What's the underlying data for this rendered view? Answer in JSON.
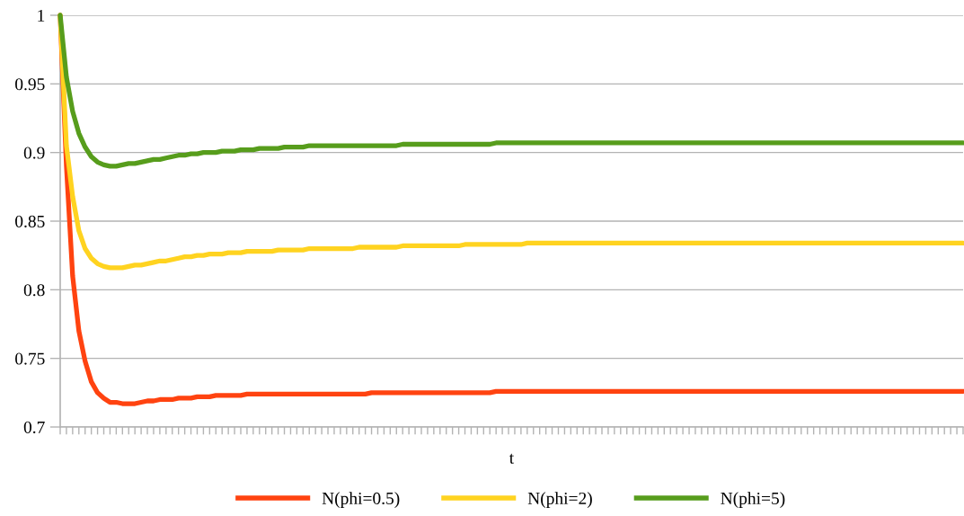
{
  "chart_data": {
    "type": "line",
    "xlabel": "t",
    "categories": [
      null,
      null,
      null,
      null,
      null,
      null,
      null,
      null,
      null,
      null,
      null,
      null,
      null,
      null,
      null,
      null,
      null,
      null,
      null,
      null,
      null,
      null,
      null,
      null,
      null,
      null,
      null,
      null,
      null,
      null,
      null,
      null,
      null,
      null,
      null,
      null,
      null,
      null,
      null,
      null,
      null,
      null,
      null,
      null,
      null,
      null,
      null,
      null,
      null,
      null,
      null,
      null,
      null,
      null,
      null,
      null,
      null,
      null,
      null,
      null,
      null,
      null,
      null,
      null,
      null,
      null,
      null,
      null,
      null,
      null,
      null,
      null,
      null,
      null,
      null,
      null,
      null,
      null,
      null,
      null,
      null,
      null,
      null,
      null,
      null,
      null,
      null,
      null,
      null,
      null,
      null,
      null,
      null,
      null,
      null,
      null,
      null,
      null,
      null,
      null,
      null,
      null,
      null,
      null,
      null,
      null,
      null,
      null,
      null,
      null,
      null,
      null,
      null,
      null,
      null,
      null,
      null,
      null,
      null,
      null,
      null,
      null,
      null,
      null,
      null,
      null,
      null,
      null,
      null,
      null,
      null,
      null,
      null,
      null,
      null,
      null,
      null,
      null,
      null,
      null,
      null,
      null,
      null,
      null,
      null,
      null
    ],
    "series": [
      {
        "name": "N(phi=0.5)",
        "color": "#ff4310",
        "values": [
          1.0,
          0.89,
          0.81,
          0.77,
          0.748,
          0.733,
          0.725,
          0.721,
          0.718,
          0.718,
          0.717,
          0.717,
          0.717,
          0.718,
          0.719,
          0.719,
          0.72,
          0.72,
          0.72,
          0.721,
          0.721,
          0.721,
          0.722,
          0.722,
          0.722,
          0.723,
          0.723,
          0.723,
          0.723,
          0.723,
          0.724,
          0.724,
          0.724,
          0.724,
          0.724,
          0.724,
          0.724,
          0.724,
          0.724,
          0.724,
          0.724,
          0.724,
          0.724,
          0.724,
          0.724,
          0.724,
          0.724,
          0.724,
          0.724,
          0.724,
          0.725,
          0.725,
          0.725,
          0.725,
          0.725,
          0.725,
          0.725,
          0.725,
          0.725,
          0.725,
          0.725,
          0.725,
          0.725,
          0.725,
          0.725,
          0.725,
          0.725,
          0.725,
          0.725,
          0.725,
          0.726,
          0.726,
          0.726,
          0.726,
          0.726,
          0.726,
          0.726,
          0.726,
          0.726,
          0.726,
          0.726,
          0.726,
          0.726,
          0.726,
          0.726,
          0.726,
          0.726,
          0.726,
          0.726,
          0.726,
          0.726,
          0.726,
          0.726,
          0.726,
          0.726,
          0.726,
          0.726,
          0.726,
          0.726,
          0.726,
          0.726,
          0.726,
          0.726,
          0.726,
          0.726,
          0.726,
          0.726,
          0.726,
          0.726,
          0.726,
          0.726,
          0.726,
          0.726,
          0.726,
          0.726,
          0.726,
          0.726,
          0.726,
          0.726,
          0.726,
          0.726,
          0.726,
          0.726,
          0.726,
          0.726,
          0.726,
          0.726,
          0.726,
          0.726,
          0.726,
          0.726,
          0.726,
          0.726,
          0.726,
          0.726,
          0.726,
          0.726,
          0.726,
          0.726,
          0.726,
          0.726,
          0.726,
          0.726,
          0.726,
          0.726,
          0.726
        ]
      },
      {
        "name": "N(phi=2)",
        "color": "#ffd320",
        "values": [
          1.0,
          0.905,
          0.868,
          0.843,
          0.83,
          0.823,
          0.819,
          0.817,
          0.816,
          0.816,
          0.816,
          0.817,
          0.818,
          0.818,
          0.819,
          0.82,
          0.821,
          0.821,
          0.822,
          0.823,
          0.824,
          0.824,
          0.825,
          0.825,
          0.826,
          0.826,
          0.826,
          0.827,
          0.827,
          0.827,
          0.828,
          0.828,
          0.828,
          0.828,
          0.828,
          0.829,
          0.829,
          0.829,
          0.829,
          0.829,
          0.83,
          0.83,
          0.83,
          0.83,
          0.83,
          0.83,
          0.83,
          0.83,
          0.831,
          0.831,
          0.831,
          0.831,
          0.831,
          0.831,
          0.831,
          0.832,
          0.832,
          0.832,
          0.832,
          0.832,
          0.832,
          0.832,
          0.832,
          0.832,
          0.832,
          0.833,
          0.833,
          0.833,
          0.833,
          0.833,
          0.833,
          0.833,
          0.833,
          0.833,
          0.833,
          0.834,
          0.834,
          0.834,
          0.834,
          0.834,
          0.834,
          0.834,
          0.834,
          0.834,
          0.834,
          0.834,
          0.834,
          0.834,
          0.834,
          0.834,
          0.834,
          0.834,
          0.834,
          0.834,
          0.834,
          0.834,
          0.834,
          0.834,
          0.834,
          0.834,
          0.834,
          0.834,
          0.834,
          0.834,
          0.834,
          0.834,
          0.834,
          0.834,
          0.834,
          0.834,
          0.834,
          0.834,
          0.834,
          0.834,
          0.834,
          0.834,
          0.834,
          0.834,
          0.834,
          0.834,
          0.834,
          0.834,
          0.834,
          0.834,
          0.834,
          0.834,
          0.834,
          0.834,
          0.834,
          0.834,
          0.834,
          0.834,
          0.834,
          0.834,
          0.834,
          0.834,
          0.834,
          0.834,
          0.834,
          0.834,
          0.834,
          0.834,
          0.834,
          0.834,
          0.834,
          0.834
        ]
      },
      {
        "name": "N(phi=5)",
        "color": "#579d1c",
        "values": [
          1.0,
          0.955,
          0.93,
          0.914,
          0.904,
          0.897,
          0.893,
          0.891,
          0.89,
          0.89,
          0.891,
          0.892,
          0.892,
          0.893,
          0.894,
          0.895,
          0.895,
          0.896,
          0.897,
          0.898,
          0.898,
          0.899,
          0.899,
          0.9,
          0.9,
          0.9,
          0.901,
          0.901,
          0.901,
          0.902,
          0.902,
          0.902,
          0.903,
          0.903,
          0.903,
          0.903,
          0.904,
          0.904,
          0.904,
          0.904,
          0.905,
          0.905,
          0.905,
          0.905,
          0.905,
          0.905,
          0.905,
          0.905,
          0.905,
          0.905,
          0.905,
          0.905,
          0.905,
          0.905,
          0.905,
          0.906,
          0.906,
          0.906,
          0.906,
          0.906,
          0.906,
          0.906,
          0.906,
          0.906,
          0.906,
          0.906,
          0.906,
          0.906,
          0.906,
          0.906,
          0.907,
          0.907,
          0.907,
          0.907,
          0.907,
          0.907,
          0.907,
          0.907,
          0.907,
          0.907,
          0.907,
          0.907,
          0.907,
          0.907,
          0.907,
          0.907,
          0.907,
          0.907,
          0.907,
          0.907,
          0.907,
          0.907,
          0.907,
          0.907,
          0.907,
          0.907,
          0.907,
          0.907,
          0.907,
          0.907,
          0.907,
          0.907,
          0.907,
          0.907,
          0.907,
          0.907,
          0.907,
          0.907,
          0.907,
          0.907,
          0.907,
          0.907,
          0.907,
          0.907,
          0.907,
          0.907,
          0.907,
          0.907,
          0.907,
          0.907,
          0.907,
          0.907,
          0.907,
          0.907,
          0.907,
          0.907,
          0.907,
          0.907,
          0.907,
          0.907,
          0.907,
          0.907,
          0.907,
          0.907,
          0.907,
          0.907,
          0.907,
          0.907,
          0.907,
          0.907,
          0.907,
          0.907,
          0.907,
          0.907,
          0.907,
          0.907
        ]
      }
    ],
    "ylim": [
      0.7,
      1
    ],
    "yticks": [
      0.7,
      0.75,
      0.8,
      0.85,
      0.9,
      0.95,
      1
    ],
    "grid": "y",
    "legend": "bottom",
    "marker": "none",
    "line_style": "solid"
  }
}
